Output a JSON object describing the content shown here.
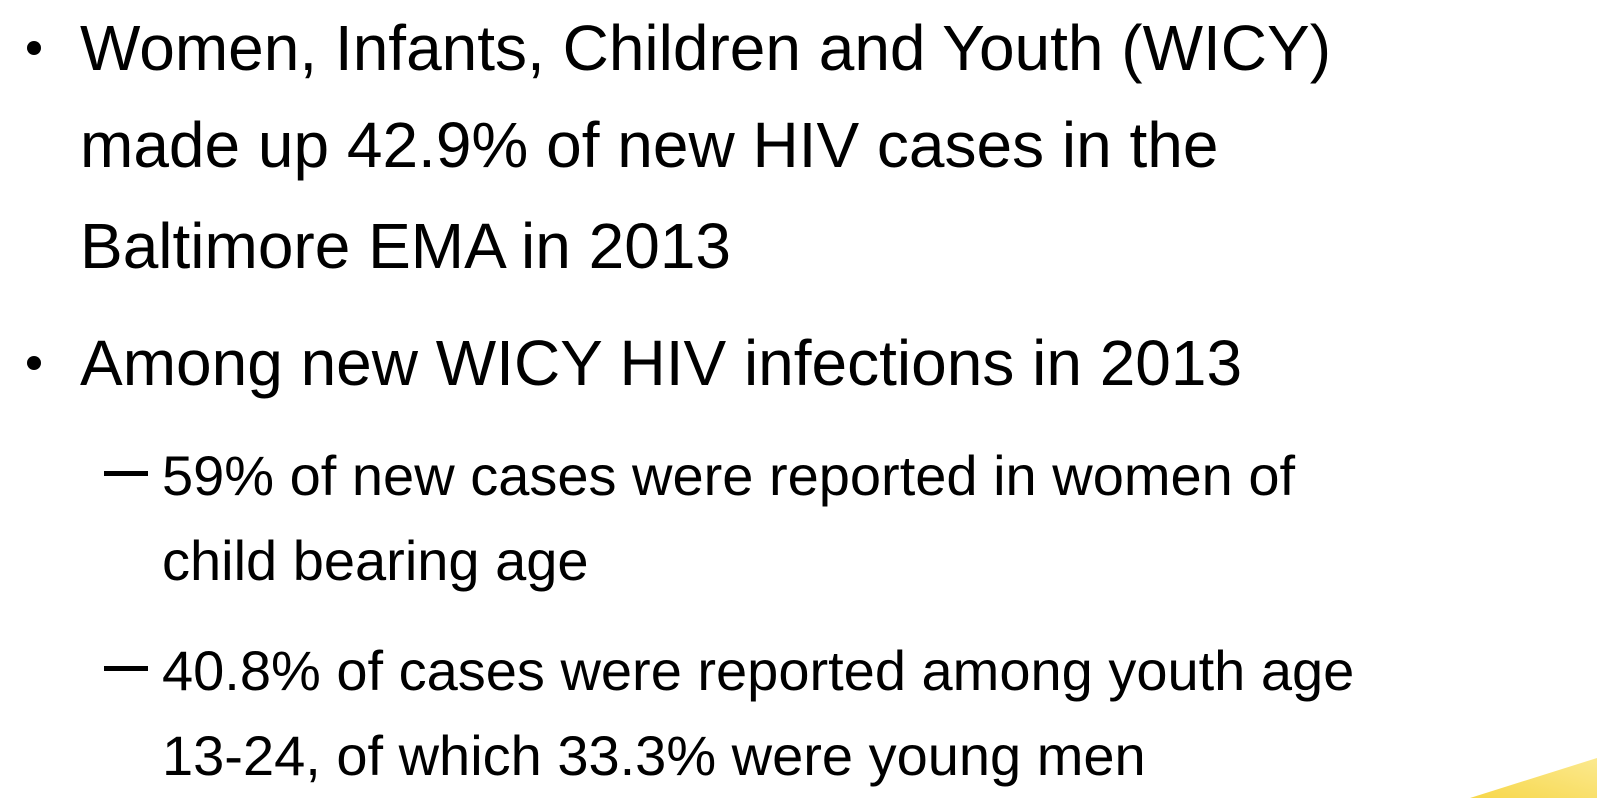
{
  "bullets": [
    {
      "lines": [
        "Women, Infants, Children and Youth (WICY)",
        "made up 42.9% of new HIV cases in the",
        "Baltimore EMA in 2013"
      ],
      "sub": []
    },
    {
      "lines": [
        "Among new WICY HIV infections in 2013"
      ],
      "sub": [
        {
          "lines": [
            "59% of new cases were reported in women of",
            "child bearing age"
          ]
        },
        {
          "lines": [
            "40.8% of cases were reported among youth age",
            "13-24, of which 33.3% were young men"
          ]
        }
      ]
    }
  ]
}
